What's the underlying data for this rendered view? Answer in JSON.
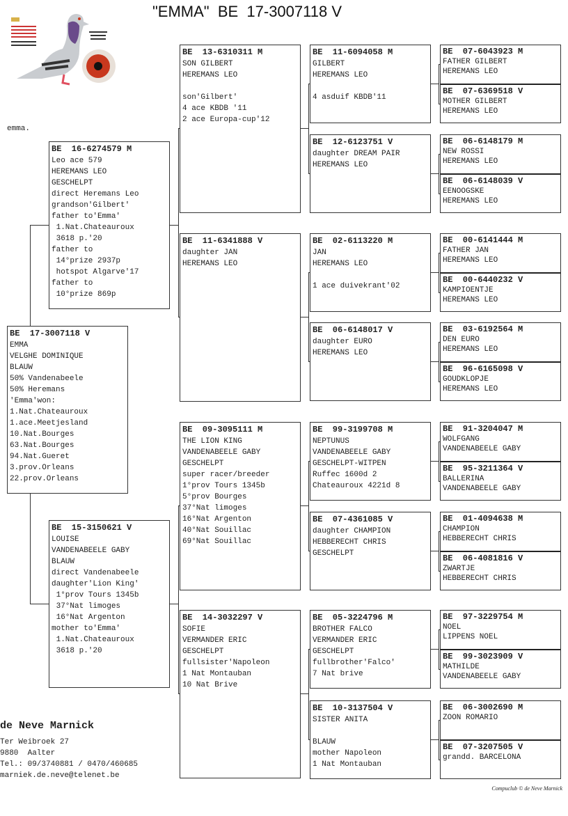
{
  "title": "\"EMMA\"  BE  17-3007118 V",
  "note": "emma.",
  "subject": {
    "ring": "BE  17-3007118 V",
    "lines": [
      "EMMA",
      "VELGHE DOMINIQUE",
      "BLAUW",
      "50% Vandenabeele",
      "50% Heremans",
      "'Emma'won:",
      "1.Nat.Chateauroux",
      "1.ace.Meetjesland",
      "10.Nat.Bourges",
      "63.Nat.Bourges",
      "94.Nat.Gueret",
      "3.prov.Orleans",
      "22.prov.Orleans"
    ]
  },
  "parents": [
    {
      "ring": "BE  16-6274579 M",
      "lines": [
        "Leo ace 579",
        "HEREMANS LEO",
        "GESCHELPT",
        "direct Heremans Leo",
        "grandson'Gilbert'",
        "father to'Emma'",
        " 1.Nat.Chateauroux",
        " 3618 p.'20",
        "father to",
        " 14°prize 2937p",
        " hotspot Algarve'17",
        "father to",
        " 10°prize 869p"
      ]
    },
    {
      "ring": "BE  15-3150621 V",
      "lines": [
        "LOUISE",
        "VANDENABEELE GABY",
        "BLAUW",
        "direct Vandenabeele",
        "daughter'Lion King'",
        " 1°prov Tours 1345b",
        " 37°Nat limoges",
        " 16°Nat Argenton",
        "mother to'Emma'",
        " 1.Nat.Chateauroux",
        " 3618 p.'20"
      ]
    }
  ],
  "grandparents": [
    {
      "ring": "BE  13-6310311 M",
      "lines": [
        "SON GILBERT",
        "HEREMANS LEO",
        "",
        "son'Gilbert'",
        "4 ace KBDB '11",
        "2 ace Europa-cup'12"
      ]
    },
    {
      "ring": "BE  11-6341888 V",
      "lines": [
        "daughter JAN",
        "HEREMANS LEO"
      ]
    },
    {
      "ring": "BE  09-3095111 M",
      "lines": [
        "THE LION KING",
        "VANDENABEELE GABY",
        "GESCHELPT",
        "super racer/breeder",
        "1°prov Tours 1345b",
        "5°prov Bourges",
        "37°Nat limoges",
        "16°Nat Argenton",
        "40°Nat Souillac",
        "69°Nat Souillac"
      ]
    },
    {
      "ring": "BE  14-3032297 V",
      "lines": [
        "SOFIE",
        "VERMANDER ERIC",
        "GESCHELPT",
        "fullsister'Napoleon",
        "1 Nat Montauban",
        "10 Nat Brive"
      ]
    }
  ],
  "great_grandparents": [
    {
      "ring": "BE  11-6094058 M",
      "lines": [
        "GILBERT",
        "HEREMANS LEO",
        "",
        "4 asduif KBDB'11"
      ]
    },
    {
      "ring": "BE  12-6123751 V",
      "lines": [
        "daughter DREAM PAIR",
        "HEREMANS LEO"
      ]
    },
    {
      "ring": "BE  02-6113220 M",
      "lines": [
        "JAN",
        "HEREMANS LEO",
        "",
        "1 ace duivekrant'02"
      ]
    },
    {
      "ring": "BE  06-6148017 V",
      "lines": [
        "daughter EURO",
        "HEREMANS LEO"
      ]
    },
    {
      "ring": "BE  99-3199708 M",
      "lines": [
        "NEPTUNUS",
        "VANDENABEELE GABY",
        "GESCHELPT-WITPEN",
        "Ruffec 1600d 2",
        "Chateauroux 4221d 8"
      ]
    },
    {
      "ring": "BE  07-4361085 V",
      "lines": [
        "daughter CHAMPION",
        "HEBBERECHT CHRIS",
        "GESCHELPT"
      ]
    },
    {
      "ring": "BE  05-3224796 M",
      "lines": [
        "BROTHER FALCO",
        "VERMANDER ERIC",
        "GESCHELPT",
        "fullbrother'Falco'",
        "7 Nat brive"
      ]
    },
    {
      "ring": "BE  10-3137504 V",
      "lines": [
        "SISTER ANITA",
        "",
        "BLAUW",
        "mother Napoleon",
        "1 Nat Montauban"
      ]
    }
  ],
  "great_great_grandparents": [
    {
      "ring": "BE  07-6043923 M",
      "lines": [
        "FATHER GILBERT",
        "HEREMANS LEO"
      ]
    },
    {
      "ring": "BE  07-6369518 V",
      "lines": [
        "MOTHER GILBERT",
        "HEREMANS LEO"
      ]
    },
    {
      "ring": "BE  06-6148179 M",
      "lines": [
        "NEW ROSSI",
        "HEREMANS LEO"
      ]
    },
    {
      "ring": "BE  06-6148039 V",
      "lines": [
        "EENOOGSKE",
        "HEREMANS LEO"
      ]
    },
    {
      "ring": "BE  00-6141444 M",
      "lines": [
        "FATHER JAN",
        "HEREMANS LEO"
      ]
    },
    {
      "ring": "BE  00-6440232 V",
      "lines": [
        "KAMPIOENTJE",
        "HEREMANS LEO"
      ]
    },
    {
      "ring": "BE  03-6192564 M",
      "lines": [
        "DEN EURO",
        "HEREMANS LEO"
      ]
    },
    {
      "ring": "BE  96-6165098 V",
      "lines": [
        "GOUDKLOPJE",
        "HEREMANS LEO"
      ]
    },
    {
      "ring": "BE  91-3204047 M",
      "lines": [
        "WOLFGANG",
        "VANDENABEELE GABY"
      ]
    },
    {
      "ring": "BE  95-3211364 V",
      "lines": [
        "BALLERINA",
        "VANDENABEELE GABY"
      ]
    },
    {
      "ring": "BE  01-4094638 M",
      "lines": [
        "CHAMPION",
        "HEBBERECHT CHRIS"
      ]
    },
    {
      "ring": "BE  06-4081816 V",
      "lines": [
        "ZWARTJE",
        "HEBBERECHT CHRIS"
      ]
    },
    {
      "ring": "BE  97-3229754 M",
      "lines": [
        "NOEL",
        "LIPPENS NOEL"
      ]
    },
    {
      "ring": "BE  99-3023909 V",
      "lines": [
        "MATHILDE",
        "VANDENABEELE GABY"
      ]
    },
    {
      "ring": "BE  06-3002690 M",
      "lines": [
        "ZOON ROMARIO"
      ]
    },
    {
      "ring": "BE  07-3207505 V",
      "lines": [
        "grandd. BARCELONA"
      ]
    }
  ],
  "owner": {
    "name": "de Neve Marnick",
    "address": "Ter Weibroek 27",
    "city": "9880  Aalter",
    "phone": "Tel.: 09/3740881 / 0470/460685",
    "email": "marniek.de.neve@telenet.be"
  },
  "copyright": "Compuclub © de Neve Marnick",
  "colors": {
    "eye": "#c8381e",
    "neck": "#6a4a8a",
    "body": "#c9ccd0"
  }
}
